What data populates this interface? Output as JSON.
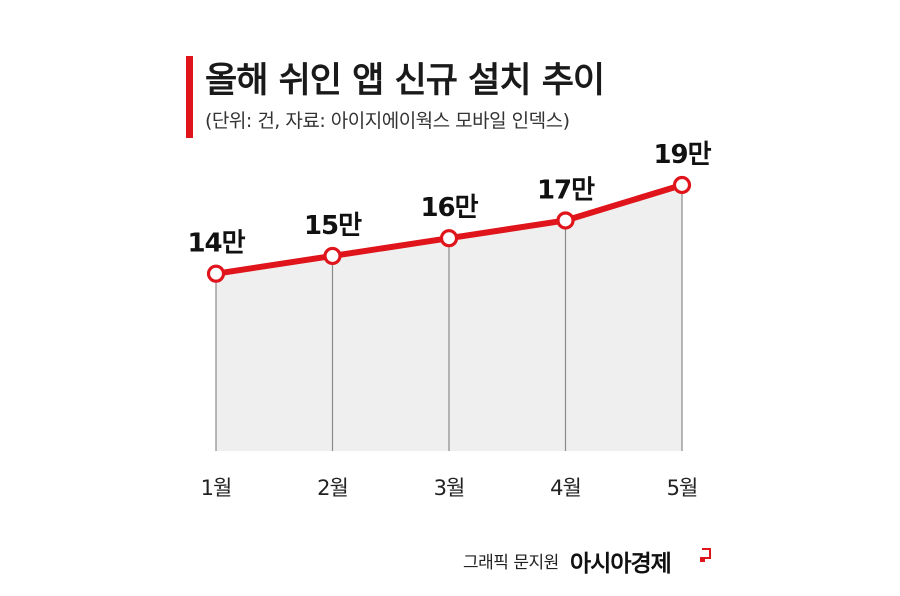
{
  "title": "올해 쉬인 앱 신규 설치 추이",
  "subtitle": "(단위: 건, 자료: 아이지에이웍스 모바일 인덱스)",
  "credit": "그래픽 문지원",
  "brand": "아시아경제",
  "colors": {
    "accent": "#e0141b",
    "area": "#efefef",
    "drop_line": "#8a8a8a"
  },
  "chart_data": {
    "type": "line",
    "categories": [
      "1월",
      "2월",
      "3월",
      "4월",
      "5월"
    ],
    "values": [
      14,
      15,
      16,
      17,
      19
    ],
    "data_labels": [
      "14만",
      "15만",
      "16만",
      "17만",
      "19만"
    ],
    "ylim": [
      4,
      19
    ],
    "area_fill": true,
    "grid": false,
    "xlabel": "",
    "ylabel": ""
  }
}
